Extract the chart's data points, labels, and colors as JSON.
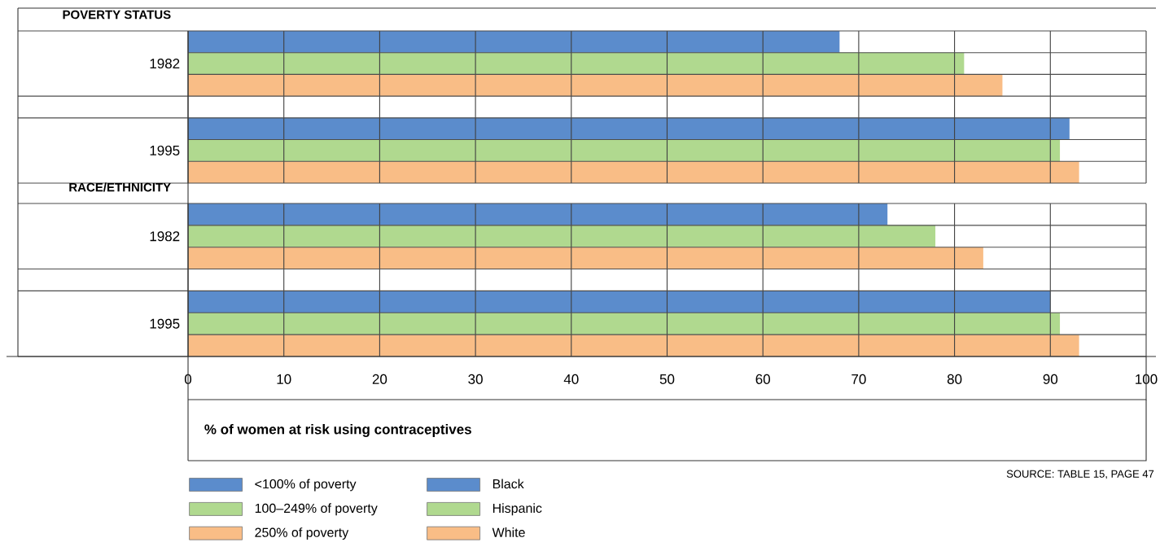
{
  "chart_data": [
    {
      "type": "bar",
      "orientation": "horizontal",
      "title": "POVERTY STATUS",
      "categories": [
        "1982",
        "1995"
      ],
      "series": [
        {
          "name": "<100% of poverty",
          "color": "#5b8ccc",
          "values": [
            68,
            92
          ]
        },
        {
          "name": "100–249% of poverty",
          "color": "#b0d98f",
          "values": [
            81,
            91
          ]
        },
        {
          "name": "250% of poverty",
          "color": "#f9bd86",
          "values": [
            85,
            93
          ]
        }
      ],
      "xlim": [
        0,
        100
      ],
      "xticks": [
        0,
        10,
        20,
        30,
        40,
        50,
        60,
        70,
        80,
        90,
        100
      ],
      "tick_labels": "y",
      "grid": "x",
      "legend": "bottom"
    },
    {
      "type": "bar",
      "orientation": "horizontal",
      "title": "RACE/ETHNICITY",
      "categories": [
        "1982",
        "1995"
      ],
      "series": [
        {
          "name": "Black",
          "color": "#5b8ccc",
          "values": [
            73,
            90
          ]
        },
        {
          "name": "Hispanic",
          "color": "#b0d98f",
          "values": [
            78,
            91
          ]
        },
        {
          "name": "White",
          "color": "#f9bd86",
          "values": [
            83,
            93
          ]
        }
      ],
      "xlim": [
        0,
        100
      ],
      "xticks": [
        0,
        10,
        20,
        30,
        40,
        50,
        60,
        70,
        80,
        90,
        100
      ],
      "xlabel": "% of women at risk using contraceptives",
      "annotations": [
        "SOURCE: TABLE 15, PAGE 47"
      ],
      "grid": "x",
      "legend": "bottom"
    }
  ]
}
